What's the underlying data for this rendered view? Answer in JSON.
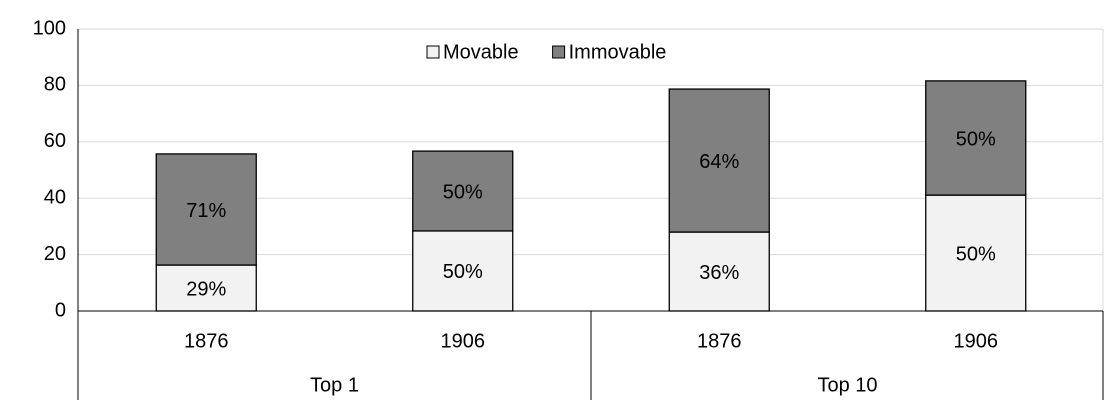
{
  "chart_data": {
    "type": "stacked-bar",
    "groups": [
      {
        "name": "Top 1",
        "categories": [
          "1876",
          "1906"
        ]
      },
      {
        "name": "Top 10",
        "categories": [
          "1876",
          "1906"
        ]
      }
    ],
    "series": [
      {
        "name": "Movable",
        "color": "#f2f2f2",
        "values": [
          16.3,
          28.4,
          28.0,
          41.1
        ],
        "percent_labels": [
          "29%",
          "50%",
          "36%",
          "50%"
        ]
      },
      {
        "name": "Immovable",
        "color": "#808080",
        "values": [
          39.4,
          28.3,
          50.7,
          40.5
        ],
        "percent_labels": [
          "71%",
          "50%",
          "64%",
          "50%"
        ]
      }
    ],
    "ylim": [
      0,
      100
    ],
    "yticks": [
      0,
      20,
      40,
      60,
      80,
      100
    ],
    "grid": true,
    "legend": "top"
  }
}
